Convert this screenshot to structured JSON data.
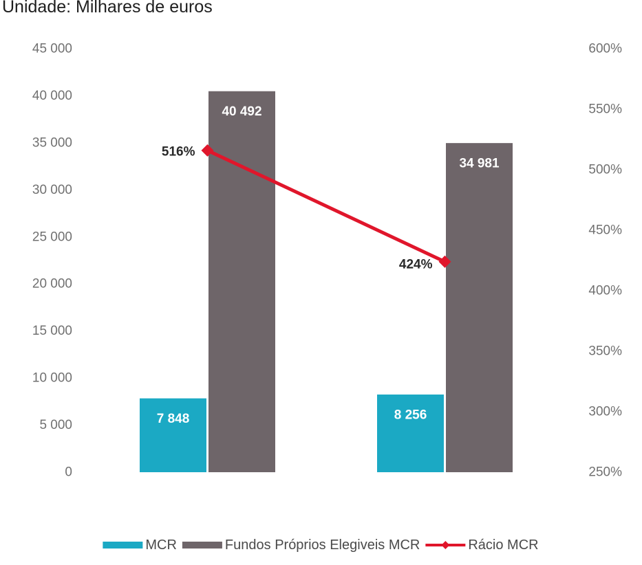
{
  "unit_label": "Unidade: Milhares de euros",
  "chart_data": {
    "type": "bar",
    "categories": [
      "",
      ""
    ],
    "series": [
      {
        "name": "MCR",
        "values": [
          7848,
          8256
        ],
        "labels": [
          "7 848",
          "8 256"
        ],
        "color": "#1ba9c4",
        "axis": "left"
      },
      {
        "name": "Fundos Próprios Elegiveis MCR",
        "values": [
          40492,
          34981
        ],
        "labels": [
          "40 492",
          "34 981"
        ],
        "color": "#6e6569",
        "axis": "left"
      },
      {
        "name": "Rácio MCR",
        "type": "line",
        "values": [
          5.16,
          4.24
        ],
        "labels": [
          "516%",
          "424%"
        ],
        "color": "#e0162b",
        "axis": "right"
      }
    ],
    "y_left": {
      "ylim": [
        0,
        45000
      ],
      "ticks": [
        0,
        5000,
        10000,
        15000,
        20000,
        25000,
        30000,
        35000,
        40000,
        45000
      ],
      "tick_labels": [
        "0",
        "5 000",
        "10 000",
        "15 000",
        "20 000",
        "25 000",
        "30 000",
        "35 000",
        "40 000",
        "45 000"
      ]
    },
    "y_right": {
      "ylim": [
        2.5,
        6.0
      ],
      "ticks": [
        2.5,
        3.0,
        3.5,
        4.0,
        4.5,
        5.0,
        5.5,
        6.0
      ],
      "tick_labels": [
        "250%",
        "300%",
        "350%",
        "400%",
        "450%",
        "500%",
        "550%",
        "600%"
      ]
    },
    "grid": false,
    "legend": "bottom"
  }
}
